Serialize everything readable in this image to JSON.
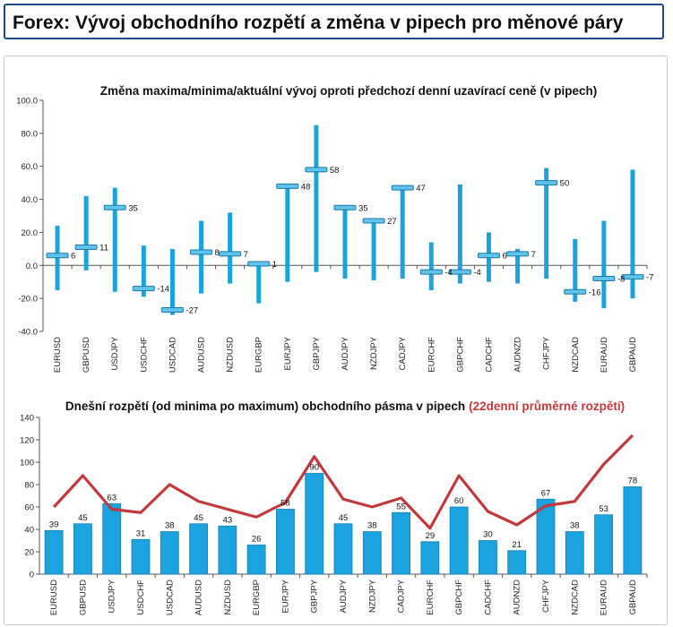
{
  "header": {
    "title": "Forex: Vývoj obchodního rozpětí a změna v pipech pro měnové páry"
  },
  "chart_data": [
    {
      "type": "floating-range",
      "title": "Změna maxima/minima/aktuální vývoj oproti předchozí denní uzavírací ceně (v pipech)",
      "categories": [
        "EURUSD",
        "GBPUSD",
        "USDJPY",
        "USDCHF",
        "USDCAD",
        "AUDUSD",
        "NZDUSD",
        "EURGBP",
        "EURJPY",
        "GBPJPY",
        "AUDJPY",
        "NZDJPY",
        "CADJPY",
        "EURCHF",
        "GBPCHF",
        "CADCHF",
        "AUDNZD",
        "CHFJPY",
        "NZDCAD",
        "EURAUD",
        "GBPAUD"
      ],
      "series": [
        {
          "name": "high",
          "values": [
            24,
            42,
            47,
            12,
            10,
            27,
            32,
            2,
            48,
            85,
            35,
            28,
            48,
            14,
            49,
            20,
            10,
            59,
            16,
            27,
            58
          ]
        },
        {
          "name": "low",
          "values": [
            -15,
            -3,
            -16,
            -19,
            -30,
            -17,
            -11,
            -23,
            -10,
            -4,
            -8,
            -9,
            -8,
            -15,
            -11,
            -10,
            -11,
            -8,
            -22,
            -26,
            -20
          ]
        },
        {
          "name": "current",
          "values": [
            6,
            11,
            35,
            -14,
            -27,
            8,
            7,
            1,
            48,
            58,
            35,
            27,
            47,
            -4,
            -4,
            6,
            7,
            50,
            -16,
            -8,
            -7
          ]
        }
      ],
      "labels": [
        "6",
        "11",
        "35",
        "-14",
        "-27",
        "8",
        "7",
        "1",
        "48",
        "58",
        "35",
        "27",
        "47",
        "-4",
        "-4",
        "6",
        "7",
        "50",
        "-16",
        "-8",
        "-7"
      ],
      "ylim": [
        -40,
        100
      ],
      "yticks": [
        "100.0",
        "80.0",
        "60.0",
        "40.0",
        "20.0",
        "0.0",
        "-20.0",
        "-40.0"
      ],
      "grid": false
    },
    {
      "type": "bar",
      "title": "Dnešní rozpětí (od minima po maximum) obchodního pásma v pipech",
      "title_highlight": "(22denní průměrné rozpětí)",
      "categories": [
        "EURUSD",
        "GBPUSD",
        "USDJPY",
        "USDCHF",
        "USDCAD",
        "AUDUSD",
        "NZDUSD",
        "EURGBP",
        "EURJPY",
        "GBPJPY",
        "AUDJPY",
        "NZDJPY",
        "CADJPY",
        "EURCHF",
        "GBPCHF",
        "CADCHF",
        "AUDNZD",
        "CHFJPY",
        "NZDCAD",
        "EURAUD",
        "GBPAUD"
      ],
      "series": [
        {
          "values": [
            39,
            45,
            63,
            31,
            38,
            45,
            43,
            26,
            58,
            90,
            45,
            38,
            55,
            29,
            60,
            30,
            21,
            67,
            38,
            53,
            78
          ]
        },
        {
          "values": [
            60,
            88,
            58,
            55,
            80,
            65,
            58,
            51,
            64,
            105,
            67,
            60,
            68,
            41,
            88,
            56,
            44,
            61,
            65,
            98,
            124
          ]
        }
      ],
      "ylim": [
        0,
        140
      ],
      "yticks": [
        "140",
        "120",
        "100",
        "80",
        "60",
        "40",
        "20",
        "0"
      ],
      "colors": {
        "bar": "#1aa3df",
        "line": "#c0393b"
      },
      "grid": false
    }
  ]
}
